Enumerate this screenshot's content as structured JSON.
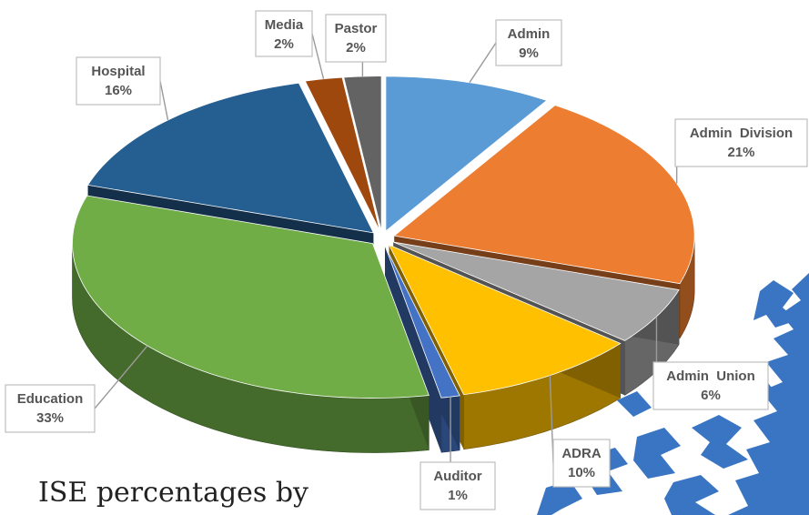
{
  "chart_data": {
    "type": "pie",
    "title": "",
    "style": "3d-exploded",
    "slices": [
      {
        "name": "Admin",
        "value": 9,
        "label": "9%",
        "color": "#5b9bd5"
      },
      {
        "name": "Admin  Division",
        "value": 21,
        "label": "21%",
        "color": "#ed7d31"
      },
      {
        "name": "Admin  Union",
        "value": 6,
        "label": "6%",
        "color": "#a5a5a5"
      },
      {
        "name": "ADRA",
        "value": 10,
        "label": "10%",
        "color": "#ffc000"
      },
      {
        "name": "Auditor",
        "value": 1,
        "label": "1%",
        "color": "#4472c4"
      },
      {
        "name": "Education",
        "value": 33,
        "label": "33%",
        "color": "#70ad47"
      },
      {
        "name": "Hospital",
        "value": 16,
        "label": "16%",
        "color": "#255e91"
      },
      {
        "name": "Media",
        "value": 2,
        "label": "2%",
        "color": "#9e480e"
      },
      {
        "name": "Pastor",
        "value": 2,
        "label": "2%",
        "color": "#636363"
      }
    ],
    "legend": "none",
    "data_labels": "callouts with category name and percent"
  },
  "caption": "ISE percentages by",
  "decoration": {
    "color": "#3a75c4",
    "shape": "blue-map-silhouette"
  }
}
